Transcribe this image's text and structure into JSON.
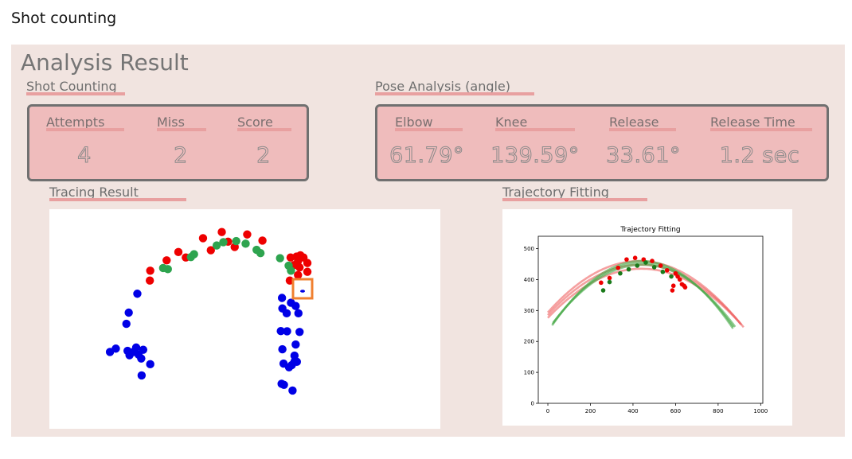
{
  "page": {
    "heading": "Shot counting"
  },
  "panel": {
    "title": "Analysis Result",
    "shot_counting": {
      "title": "Shot Counting",
      "stats": [
        {
          "label": "Attempts",
          "value": "4"
        },
        {
          "label": "Miss",
          "value": "2"
        },
        {
          "label": "Score",
          "value": "2"
        }
      ]
    },
    "pose_analysis": {
      "title": "Pose Analysis (angle)",
      "stats": [
        {
          "label": "Elbow",
          "value": "61.79°"
        },
        {
          "label": "Knee",
          "value": "139.59°"
        },
        {
          "label": "Release",
          "value": "33.61°"
        },
        {
          "label": "Release Time",
          "value": "1.2 sec"
        }
      ]
    },
    "tracing": {
      "title": "Tracing Result"
    },
    "trajectory": {
      "title": "Trajectory Fitting"
    }
  },
  "colors": {
    "panel_bg": "#f1e4e0",
    "box_fill": "#efbcbc",
    "underline": "#e8a0a0",
    "red": "#ee0000",
    "green": "#2ea44f",
    "blue": "#0000e6",
    "hoop": "#f08030"
  },
  "tracing_points": {
    "blue": [
      [
        0.155,
        0.65
      ],
      [
        0.17,
        0.635
      ],
      [
        0.222,
        0.63
      ],
      [
        0.24,
        0.64
      ],
      [
        0.228,
        0.662
      ],
      [
        0.235,
        0.68
      ],
      [
        0.258,
        0.706
      ],
      [
        0.236,
        0.757
      ],
      [
        0.2,
        0.645
      ],
      [
        0.205,
        0.665
      ],
      [
        0.215,
        0.65
      ],
      [
        0.197,
        0.522
      ],
      [
        0.203,
        0.471
      ],
      [
        0.225,
        0.385
      ],
      [
        0.595,
        0.404
      ],
      [
        0.596,
        0.452
      ],
      [
        0.592,
        0.555
      ],
      [
        0.607,
        0.474
      ],
      [
        0.618,
        0.426
      ],
      [
        0.608,
        0.556
      ],
      [
        0.63,
        0.441
      ],
      [
        0.637,
        0.474
      ],
      [
        0.64,
        0.559
      ],
      [
        0.63,
        0.616
      ],
      [
        0.596,
        0.638
      ],
      [
        0.599,
        0.703
      ],
      [
        0.62,
        0.71
      ],
      [
        0.627,
        0.694
      ],
      [
        0.627,
        0.667
      ],
      [
        0.633,
        0.695
      ],
      [
        0.613,
        0.72
      ],
      [
        0.6,
        0.8
      ],
      [
        0.594,
        0.795
      ],
      [
        0.622,
        0.826
      ]
    ],
    "red": [
      [
        0.258,
        0.28
      ],
      [
        0.257,
        0.325
      ],
      [
        0.3,
        0.233
      ],
      [
        0.33,
        0.195
      ],
      [
        0.349,
        0.22
      ],
      [
        0.393,
        0.132
      ],
      [
        0.413,
        0.187
      ],
      [
        0.441,
        0.104
      ],
      [
        0.457,
        0.148
      ],
      [
        0.474,
        0.172
      ],
      [
        0.506,
        0.115
      ],
      [
        0.545,
        0.143
      ],
      [
        0.617,
        0.22
      ],
      [
        0.632,
        0.216
      ],
      [
        0.642,
        0.21
      ],
      [
        0.65,
        0.22
      ],
      [
        0.66,
        0.245
      ],
      [
        0.636,
        0.236
      ],
      [
        0.625,
        0.255
      ],
      [
        0.64,
        0.265
      ],
      [
        0.66,
        0.285
      ],
      [
        0.636,
        0.3
      ],
      [
        0.615,
        0.325
      ]
    ],
    "green": [
      [
        0.291,
        0.268
      ],
      [
        0.303,
        0.273
      ],
      [
        0.362,
        0.218
      ],
      [
        0.37,
        0.205
      ],
      [
        0.428,
        0.165
      ],
      [
        0.445,
        0.15
      ],
      [
        0.478,
        0.145
      ],
      [
        0.502,
        0.157
      ],
      [
        0.53,
        0.185
      ],
      [
        0.54,
        0.2
      ],
      [
        0.59,
        0.223
      ],
      [
        0.612,
        0.257
      ],
      [
        0.618,
        0.28
      ]
    ]
  },
  "chart_data": {
    "type": "scatter",
    "title": "Trajectory Fitting",
    "xlim": [
      -45,
      1010
    ],
    "ylim": [
      0,
      540
    ],
    "xticks": [
      0,
      200,
      400,
      600,
      800,
      1000
    ],
    "yticks": [
      0,
      100,
      200,
      300,
      400,
      500
    ],
    "grid": false,
    "series": [
      {
        "color": "#ee0000",
        "points": [
          [
            250,
            390
          ],
          [
            290,
            405
          ],
          [
            330,
            438
          ],
          [
            370,
            465
          ],
          [
            410,
            470
          ],
          [
            450,
            465
          ],
          [
            490,
            460
          ],
          [
            530,
            445
          ],
          [
            560,
            430
          ],
          [
            600,
            420
          ],
          [
            610,
            410
          ],
          [
            620,
            400
          ],
          [
            630,
            385
          ],
          [
            640,
            380
          ],
          [
            645,
            375
          ],
          [
            590,
            380
          ],
          [
            585,
            365
          ]
        ]
      },
      {
        "color": "#1a7a1a",
        "points": [
          [
            260,
            365
          ],
          [
            290,
            392
          ],
          [
            340,
            420
          ],
          [
            380,
            433
          ],
          [
            420,
            445
          ],
          [
            460,
            455
          ],
          [
            500,
            440
          ],
          [
            540,
            425
          ],
          [
            580,
            410
          ]
        ]
      }
    ],
    "fits": [
      {
        "color": "#ee6060",
        "a": -0.0009,
        "h": 430,
        "k": 460,
        "x0": 0,
        "x1": 905
      },
      {
        "color": "#ee6060",
        "a": -0.00082,
        "h": 440,
        "k": 435,
        "x0": 0,
        "x1": 920
      },
      {
        "color": "#ee6060",
        "a": -0.00086,
        "h": 435,
        "k": 448,
        "x0": 0,
        "x1": 910
      },
      {
        "color": "#4aaa4a",
        "a": -0.00118,
        "h": 440,
        "k": 460,
        "x0": 20,
        "x1": 870
      },
      {
        "color": "#4aaa4a",
        "a": -0.00106,
        "h": 445,
        "k": 448,
        "x0": 25,
        "x1": 880
      },
      {
        "color": "#4aaa4a",
        "a": -0.00112,
        "h": 442,
        "k": 454,
        "x0": 22,
        "x1": 875
      }
    ]
  }
}
